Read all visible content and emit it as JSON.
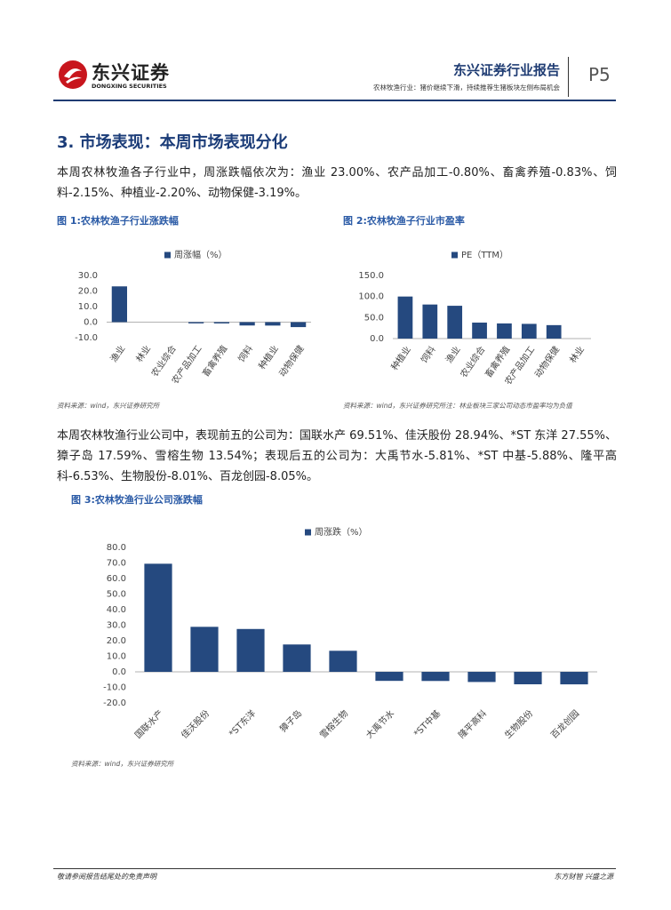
{
  "header": {
    "logo_cn": "东兴证券",
    "logo_en": "DONGXING SECURITIES",
    "report_type": "东兴证券行业报告",
    "subtitle": "农林牧渔行业：猪价继续下滑，持续推荐生猪板块左侧布局机会",
    "page": "P5"
  },
  "section_title": "3. 市场表现：本周市场表现分化",
  "paragraph1": "本周农林牧渔各子行业中，周涨跌幅依次为：渔业 23.00%、农产品加工-0.80%、畜禽养殖-0.83%、饲料-2.15%、种植业-2.20%、动物保健-3.19%。",
  "paragraph2": "本周农林牧渔行业公司中，表现前五的公司为：国联水产 69.51%、佳沃股份 28.94%、*ST 东洋 27.55%、獐子岛 17.59%、雪榕生物 13.54%；表现后五的公司为：大禹节水-5.81%、*ST 中基-5.88%、隆平高科-6.53%、生物股份-8.01%、百龙创园-8.05%。",
  "chart_data": [
    {
      "type": "bar",
      "title": "图 1:农林牧渔子行业涨跌幅",
      "source": "资料来源：wind，东兴证券研究所",
      "categories": [
        "渔业",
        "林业",
        "农业综合",
        "农产品加工",
        "畜禽养殖",
        "饲料",
        "种植业",
        "动物保健"
      ],
      "series": [
        {
          "name": "周涨幅（%）",
          "color": "#25497f",
          "values": [
            23.0,
            0,
            0,
            -0.8,
            -0.83,
            -2.15,
            -2.2,
            -3.19
          ]
        }
      ],
      "ylim": [
        -10,
        30
      ],
      "yticks": [
        {
          "value": -10,
          "label": "-10.0"
        },
        {
          "value": 0,
          "label": "0.0"
        },
        {
          "value": 10,
          "label": "10.0"
        },
        {
          "value": 20,
          "label": "20.0"
        },
        {
          "value": 30,
          "label": "30.0"
        }
      ],
      "grid": false
    },
    {
      "type": "bar",
      "title": "图 2:农林牧渔子行业市盈率",
      "source": "资料来源：wind，东兴证券研究所注：林业板块三家公司动态市盈率均为负值",
      "categories": [
        "种植业",
        "饲料",
        "渔业",
        "农业综合",
        "畜禽养殖",
        "农产品加工",
        "动物保健",
        "林业"
      ],
      "series": [
        {
          "name": "PE（TTM）",
          "color": "#25497f",
          "values": [
            100,
            81,
            78,
            38,
            36,
            35,
            32,
            null
          ]
        }
      ],
      "ylim": [
        0,
        150
      ],
      "yticks": [
        {
          "value": 0,
          "label": "0.0"
        },
        {
          "value": 50,
          "label": "50.0"
        },
        {
          "value": 100,
          "label": "100.0"
        },
        {
          "value": 150,
          "label": "150.0"
        }
      ],
      "grid": false
    },
    {
      "type": "bar",
      "title": "图 3:农林牧渔行业公司涨跌幅",
      "source": "资料来源：wind，东兴证券研究所",
      "categories": [
        "国联水产",
        "佳沃股份",
        "*ST东洋",
        "獐子岛",
        "雪榕生物",
        "大禹节水",
        "*ST中基",
        "隆平高科",
        "生物股份",
        "百龙创园"
      ],
      "series": [
        {
          "name": "周涨跌（%）",
          "color": "#25497f",
          "values": [
            69.51,
            28.94,
            27.55,
            17.59,
            13.54,
            -5.81,
            -5.88,
            -6.53,
            -8.01,
            -8.05
          ]
        }
      ],
      "ylim": [
        -20,
        80
      ],
      "yticks": [
        {
          "value": -20,
          "label": "-20.0"
        },
        {
          "value": -10,
          "label": "-10.0"
        },
        {
          "value": 0,
          "label": "0.0"
        },
        {
          "value": 10,
          "label": "10.0"
        },
        {
          "value": 20,
          "label": "20.0"
        },
        {
          "value": 30,
          "label": "30.0"
        },
        {
          "value": 40,
          "label": "40.0"
        },
        {
          "value": 50,
          "label": "50.0"
        },
        {
          "value": 60,
          "label": "60.0"
        },
        {
          "value": 70,
          "label": "70.0"
        },
        {
          "value": 80,
          "label": "80.0"
        }
      ],
      "grid": false
    }
  ],
  "footer": {
    "left": "敬请参阅报告结尾处的免责声明",
    "right": "东方财智 兴盛之源"
  }
}
